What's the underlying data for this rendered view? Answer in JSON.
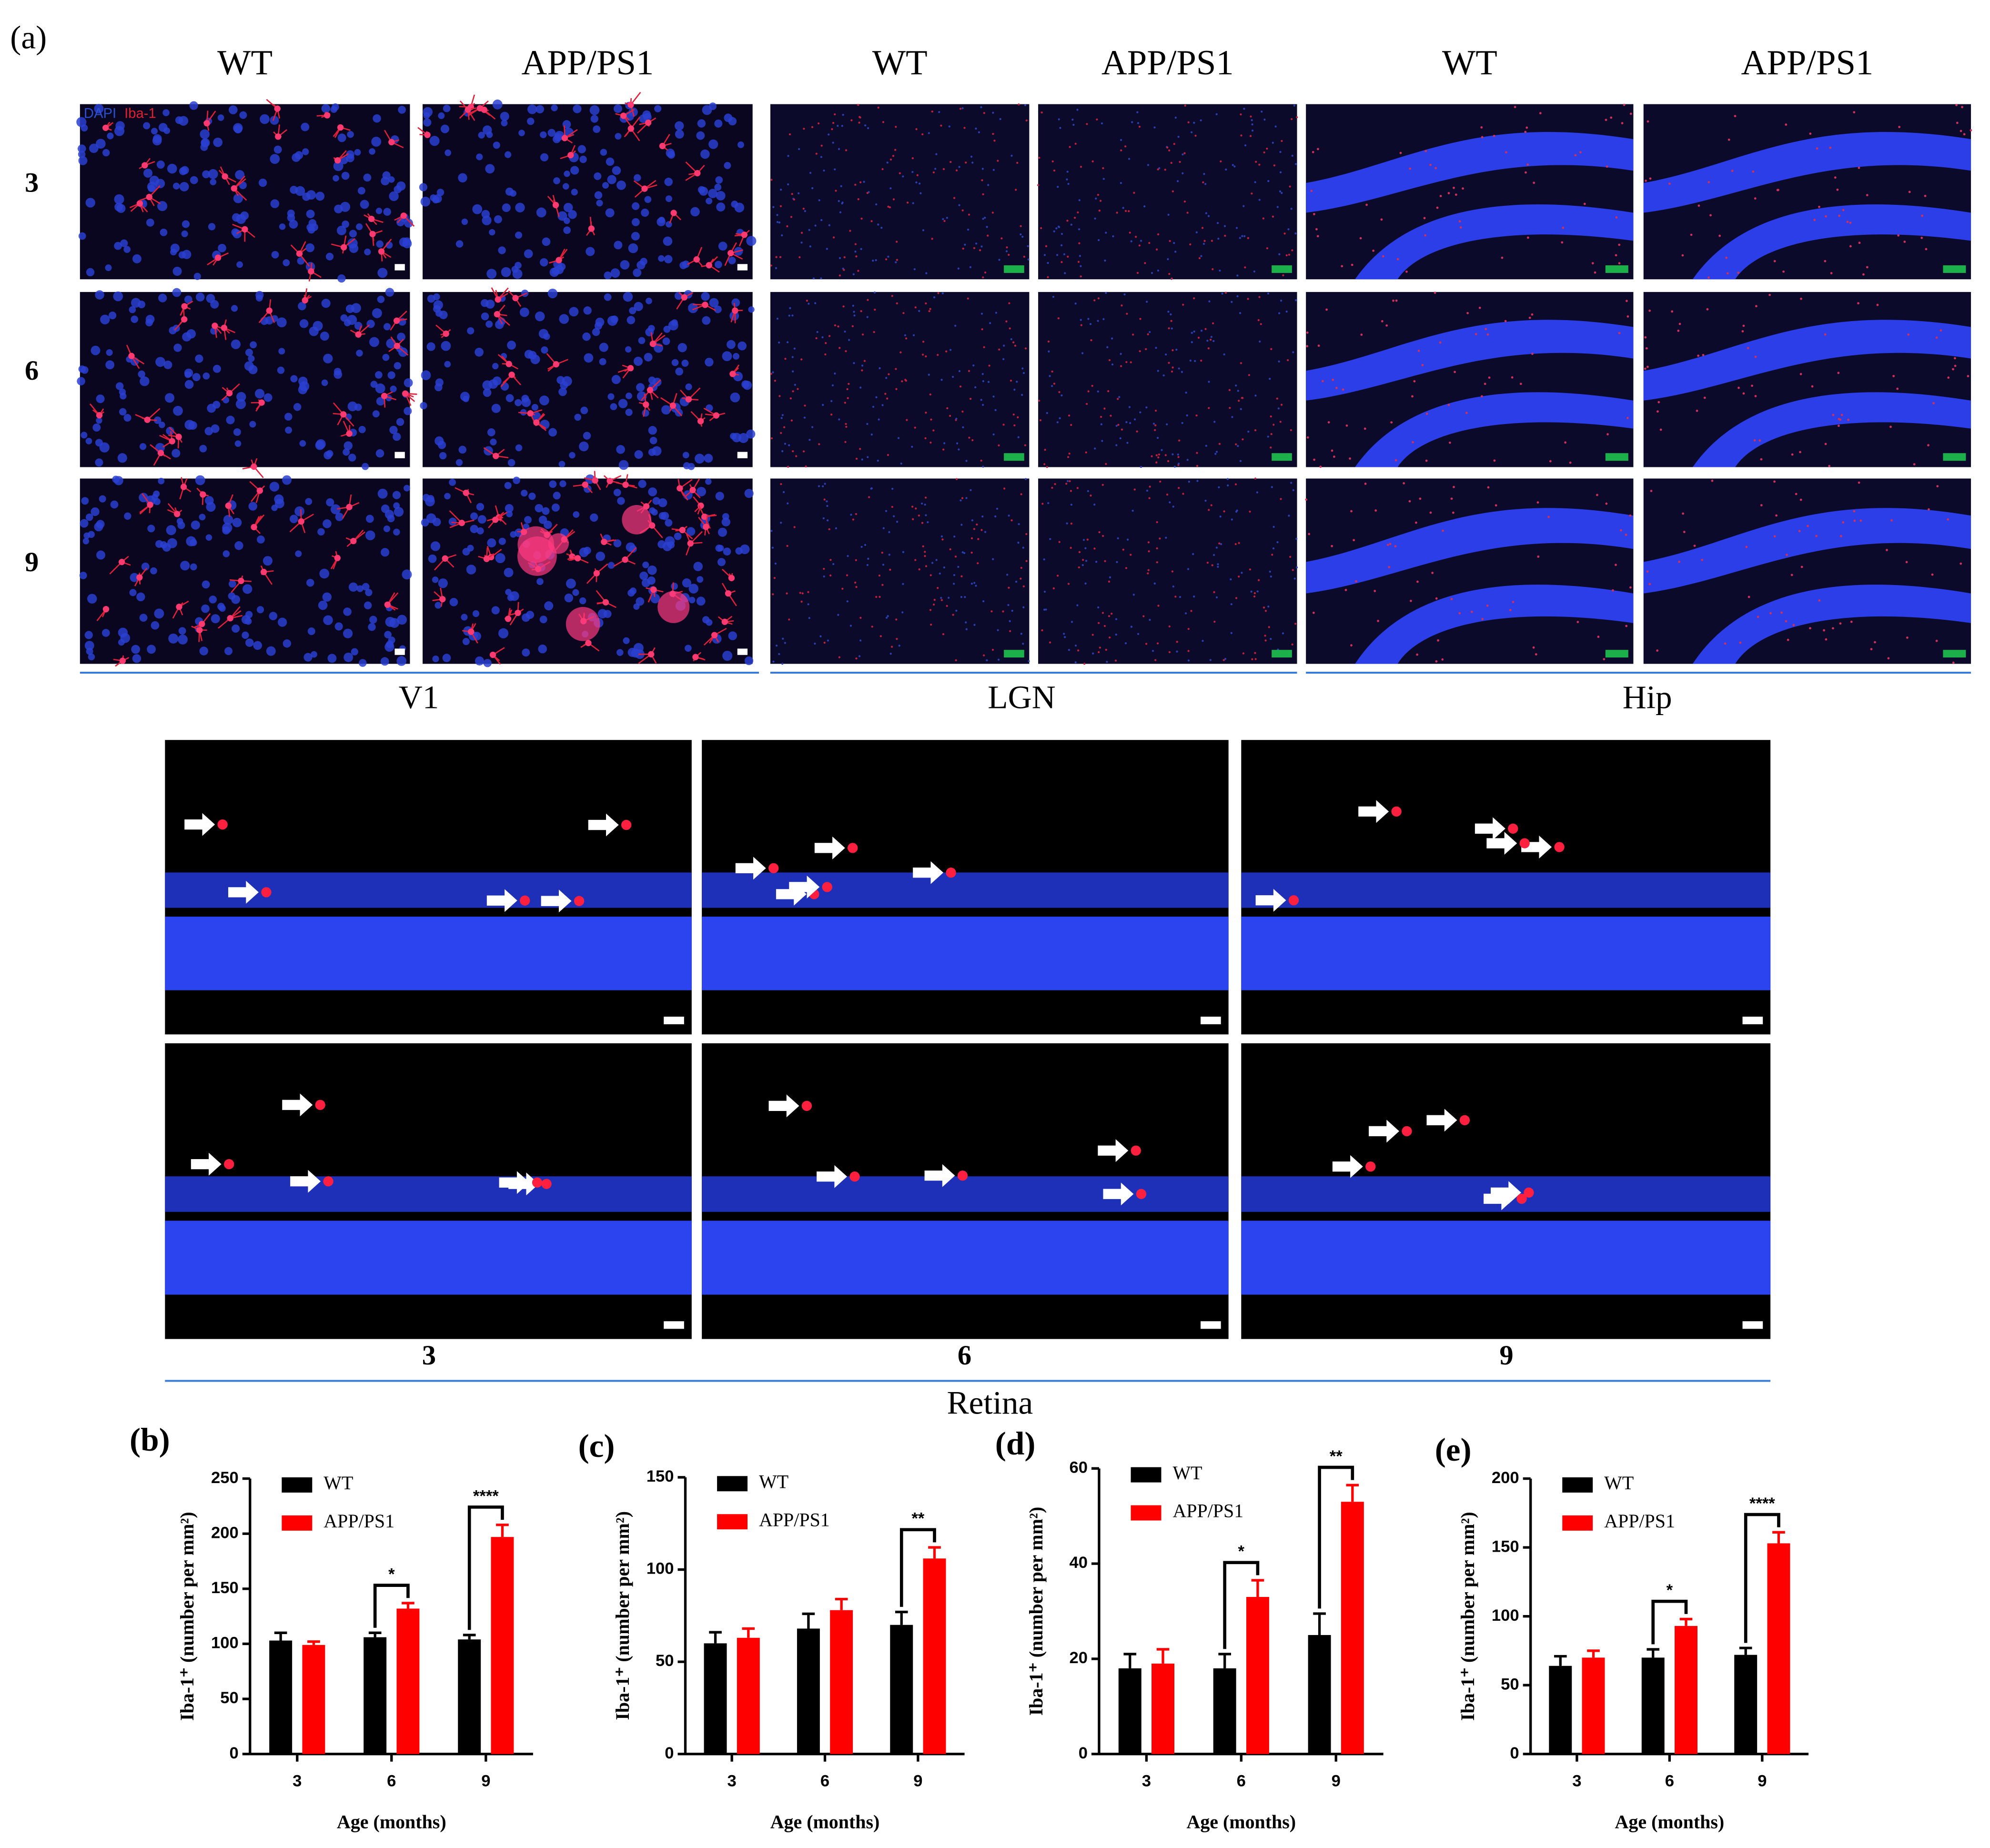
{
  "figure": {
    "panel_a_label": "(a)",
    "brain_columns": [
      "WT",
      "APP/PS1",
      "WT",
      "APP/PS1",
      "WT",
      "APP/PS1"
    ],
    "rows": [
      "3",
      "6",
      "9"
    ],
    "regions": [
      "V1",
      "LGN",
      "Hip"
    ],
    "stain_labels": [
      "DAPI",
      "Iba-1"
    ],
    "retina_columns": [
      "3",
      "6",
      "9"
    ],
    "retina_label": "Retina"
  },
  "chart_data": [
    {
      "type": "bar",
      "panel": "(b)",
      "ylabel": "Iba-1⁺ (number per mm²)",
      "xlabel": "Age (months)",
      "categories": [
        "3",
        "6",
        "9"
      ],
      "series": [
        {
          "name": "WT",
          "color": "#000000",
          "values": [
            103,
            106,
            104
          ],
          "errors": [
            7,
            4,
            4
          ]
        },
        {
          "name": "APP/PS1",
          "color": "#ff0000",
          "values": [
            99,
            132,
            197
          ],
          "errors": [
            3,
            5,
            11
          ]
        }
      ],
      "ylim": [
        0,
        250
      ],
      "yticks": [
        0,
        50,
        100,
        150,
        200,
        250
      ],
      "annotations": [
        {
          "x": "6",
          "text": "*"
        },
        {
          "x": "9",
          "text": "****"
        }
      ]
    },
    {
      "type": "bar",
      "panel": "(c)",
      "ylabel": "Iba-1⁺ (number per mm²)",
      "xlabel": "Age (months)",
      "categories": [
        "3",
        "6",
        "9"
      ],
      "series": [
        {
          "name": "WT",
          "color": "#000000",
          "values": [
            60,
            68,
            70
          ],
          "errors": [
            6,
            8,
            7
          ]
        },
        {
          "name": "APP/PS1",
          "color": "#ff0000",
          "values": [
            63,
            78,
            106
          ],
          "errors": [
            5,
            6,
            6
          ]
        }
      ],
      "ylim": [
        0,
        150
      ],
      "yticks": [
        0,
        50,
        100,
        150
      ],
      "annotations": [
        {
          "x": "9",
          "text": "**"
        }
      ]
    },
    {
      "type": "bar",
      "panel": "(d)",
      "ylabel": "Iba-1⁺ (number per mm²)",
      "xlabel": "Age (months)",
      "categories": [
        "3",
        "6",
        "9"
      ],
      "series": [
        {
          "name": "WT",
          "color": "#000000",
          "values": [
            18,
            18,
            25
          ],
          "errors": [
            3,
            3,
            4.5
          ]
        },
        {
          "name": "APP/PS1",
          "color": "#ff0000",
          "values": [
            19,
            33,
            53
          ],
          "errors": [
            3,
            3.5,
            3.5
          ]
        }
      ],
      "ylim": [
        0,
        60
      ],
      "yticks": [
        0,
        20,
        40,
        60
      ],
      "annotations": [
        {
          "x": "6",
          "text": "*"
        },
        {
          "x": "9",
          "text": "**"
        }
      ]
    },
    {
      "type": "bar",
      "panel": "(e)",
      "ylabel": "Iba-1⁺ (number per mm²)",
      "xlabel": "Age (months)",
      "categories": [
        "3",
        "6",
        "9"
      ],
      "series": [
        {
          "name": "WT",
          "color": "#000000",
          "values": [
            64,
            70,
            72
          ],
          "errors": [
            7,
            6,
            5
          ]
        },
        {
          "name": "APP/PS1",
          "color": "#ff0000",
          "values": [
            70,
            93,
            153
          ],
          "errors": [
            5,
            5,
            8
          ]
        }
      ],
      "ylim": [
        0,
        200
      ],
      "yticks": [
        0,
        50,
        100,
        150,
        200
      ],
      "annotations": [
        {
          "x": "6",
          "text": "*"
        },
        {
          "x": "9",
          "text": "****"
        }
      ]
    }
  ]
}
